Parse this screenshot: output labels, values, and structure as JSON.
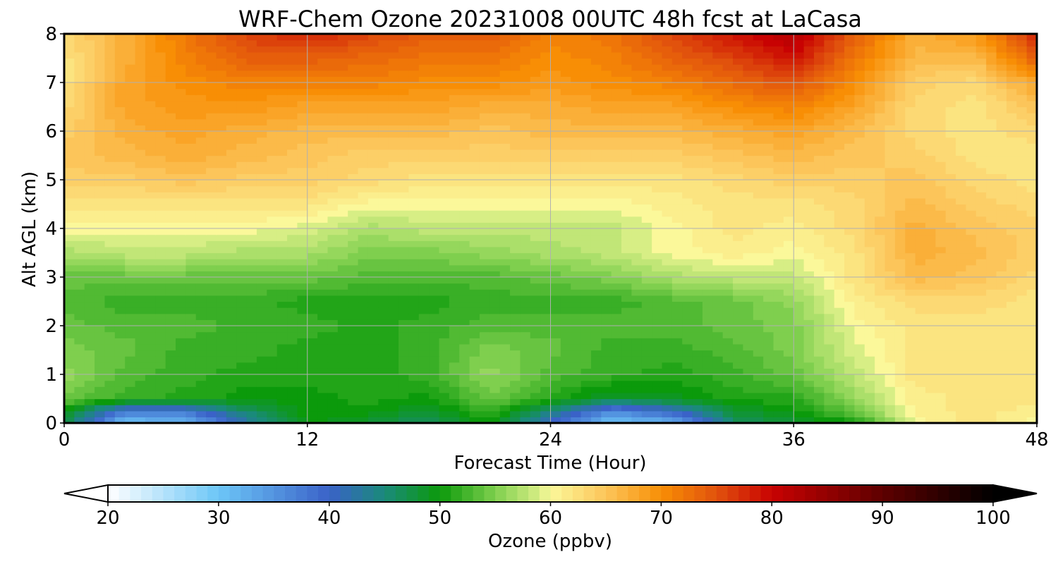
{
  "chart_data": {
    "type": "heatmap",
    "title": "WRF-Chem Ozone  20231008 00UTC 48h fcst at LaCasa",
    "xlabel": "Forecast Time (Hour)",
    "ylabel": "Alt AGL (km)",
    "xlim": [
      0,
      48
    ],
    "ylim": [
      0,
      8
    ],
    "x_ticks": [
      0,
      12,
      24,
      36,
      48
    ],
    "y_ticks": [
      0,
      1,
      2,
      3,
      4,
      5,
      6,
      7,
      8
    ],
    "grid": true,
    "x": [
      0,
      3,
      6,
      9,
      12,
      15,
      18,
      21,
      24,
      27,
      30,
      33,
      36,
      39,
      42,
      45,
      48
    ],
    "y": [
      0,
      0.25,
      0.5,
      1,
      1.5,
      2,
      2.5,
      3,
      3.5,
      4,
      4.5,
      5,
      5.5,
      6,
      6.5,
      7,
      7.5,
      8
    ],
    "z": [
      [
        48,
        30,
        32,
        42,
        50,
        48,
        46,
        50,
        40,
        30,
        32,
        46,
        48,
        50,
        60,
        62,
        60
      ],
      [
        50,
        38,
        38,
        46,
        50,
        50,
        48,
        52,
        45,
        36,
        40,
        48,
        50,
        54,
        61,
        62,
        61
      ],
      [
        54,
        52,
        51,
        50,
        50,
        51,
        50,
        54,
        51,
        48,
        49,
        51,
        51,
        56,
        61,
        62,
        62
      ],
      [
        56,
        53,
        52,
        51,
        51,
        51,
        52,
        56,
        53,
        52,
        51,
        52,
        54,
        58,
        62,
        62,
        62
      ],
      [
        55,
        54,
        52,
        52,
        51,
        51,
        52,
        55,
        54,
        52,
        52,
        53,
        55,
        59,
        62,
        62,
        62
      ],
      [
        54,
        53,
        53,
        52,
        52,
        51,
        52,
        53,
        53,
        53,
        53,
        54,
        55,
        60,
        62,
        62,
        62
      ],
      [
        53,
        52,
        52,
        52,
        51,
        51,
        51,
        52,
        52,
        52,
        53,
        54,
        56,
        61,
        63,
        63,
        62
      ],
      [
        54,
        54,
        54,
        54,
        54,
        53,
        53,
        53,
        54,
        55,
        57,
        58,
        58,
        62,
        66,
        65,
        63
      ],
      [
        57,
        58,
        58,
        57,
        57,
        55,
        55,
        56,
        57,
        58,
        60,
        61,
        60,
        62,
        67,
        66,
        64
      ],
      [
        60,
        60,
        60,
        60,
        59,
        57,
        58,
        58,
        58,
        58,
        60,
        62,
        61,
        63,
        67,
        65,
        64
      ],
      [
        62,
        62,
        62,
        62,
        62,
        60,
        60,
        60,
        60,
        60,
        61,
        62,
        62,
        63,
        66,
        64,
        63
      ],
      [
        64,
        64,
        65,
        64,
        64,
        63,
        62,
        62,
        62,
        62,
        62,
        63,
        64,
        64,
        65,
        63,
        62
      ],
      [
        65,
        66,
        67,
        66,
        65,
        64,
        64,
        64,
        64,
        64,
        64,
        65,
        66,
        65,
        64,
        62,
        62
      ],
      [
        64,
        67,
        68,
        67,
        66,
        66,
        66,
        65,
        66,
        66,
        66,
        67,
        68,
        66,
        63,
        62,
        63
      ],
      [
        63,
        68,
        69,
        69,
        68,
        68,
        68,
        67,
        67,
        68,
        68,
        70,
        71,
        68,
        63,
        62,
        65
      ],
      [
        62,
        68,
        70,
        71,
        71,
        71,
        70,
        70,
        69,
        70,
        71,
        73,
        75,
        70,
        64,
        63,
        68
      ],
      [
        62,
        67,
        71,
        74,
        74,
        73,
        72,
        72,
        70,
        71,
        74,
        76,
        79,
        72,
        66,
        66,
        74
      ],
      [
        63,
        67,
        72,
        76,
        78,
        76,
        74,
        74,
        71,
        72,
        76,
        79,
        82,
        74,
        67,
        69,
        78
      ]
    ],
    "colorbar": {
      "label": "Ozone  (ppbv)",
      "min": 20,
      "max": 100,
      "ticks": [
        20,
        30,
        40,
        50,
        60,
        70,
        80,
        90,
        100
      ],
      "extend": "both",
      "orientation": "horizontal"
    },
    "colormap": [
      {
        "v": 20,
        "c": "#ffffff"
      },
      {
        "v": 30,
        "c": "#6cc6f7"
      },
      {
        "v": 40,
        "c": "#3a62c8"
      },
      {
        "v": 45,
        "c": "#1a8a7a"
      },
      {
        "v": 50,
        "c": "#0b9a0b"
      },
      {
        "v": 55,
        "c": "#7fcf4e"
      },
      {
        "v": 59,
        "c": "#d7ee85"
      },
      {
        "v": 60,
        "c": "#fbf89a"
      },
      {
        "v": 65,
        "c": "#fcc55a"
      },
      {
        "v": 70,
        "c": "#f88e05"
      },
      {
        "v": 75,
        "c": "#e1520d"
      },
      {
        "v": 80,
        "c": "#c80202"
      },
      {
        "v": 90,
        "c": "#5e0000"
      },
      {
        "v": 100,
        "c": "#000000"
      }
    ]
  }
}
